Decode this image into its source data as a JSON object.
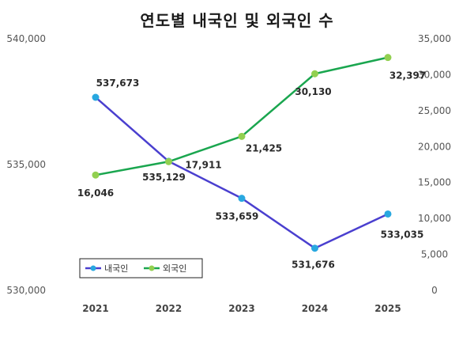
{
  "chart_data": {
    "type": "line",
    "title": "연도별 내국인 및 외국인 수",
    "categories": [
      "2021",
      "2022",
      "2023",
      "2024",
      "2025"
    ],
    "series": [
      {
        "name": "내국인",
        "axis": "left",
        "color": "#4a3fcf",
        "marker_color": "#29a8e0",
        "values": [
          537673,
          535129,
          533659,
          531676,
          533035
        ],
        "labels": [
          "537,673",
          "535,129",
          "533,659",
          "531,676",
          "533,035"
        ]
      },
      {
        "name": "외국인",
        "axis": "right",
        "color": "#1aa64f",
        "marker_color": "#92d050",
        "values": [
          16046,
          17911,
          21425,
          30130,
          32397
        ],
        "labels": [
          "16,046",
          "17,911",
          "21,425",
          "30,130",
          "32,397"
        ]
      }
    ],
    "y_left": {
      "min": 530000,
      "max": 540000,
      "ticks": [
        530000,
        535000,
        540000
      ],
      "tick_labels": [
        "530,000",
        "535,000",
        "540,000"
      ]
    },
    "y_right": {
      "min": 0,
      "max": 35000,
      "ticks": [
        0,
        5000,
        10000,
        15000,
        20000,
        25000,
        30000,
        35000
      ],
      "tick_labels": [
        "0",
        "5,000",
        "10,000",
        "15,000",
        "20,000",
        "25,000",
        "30,000",
        "35,000"
      ]
    },
    "grid": false,
    "legend": "bottom-left"
  }
}
